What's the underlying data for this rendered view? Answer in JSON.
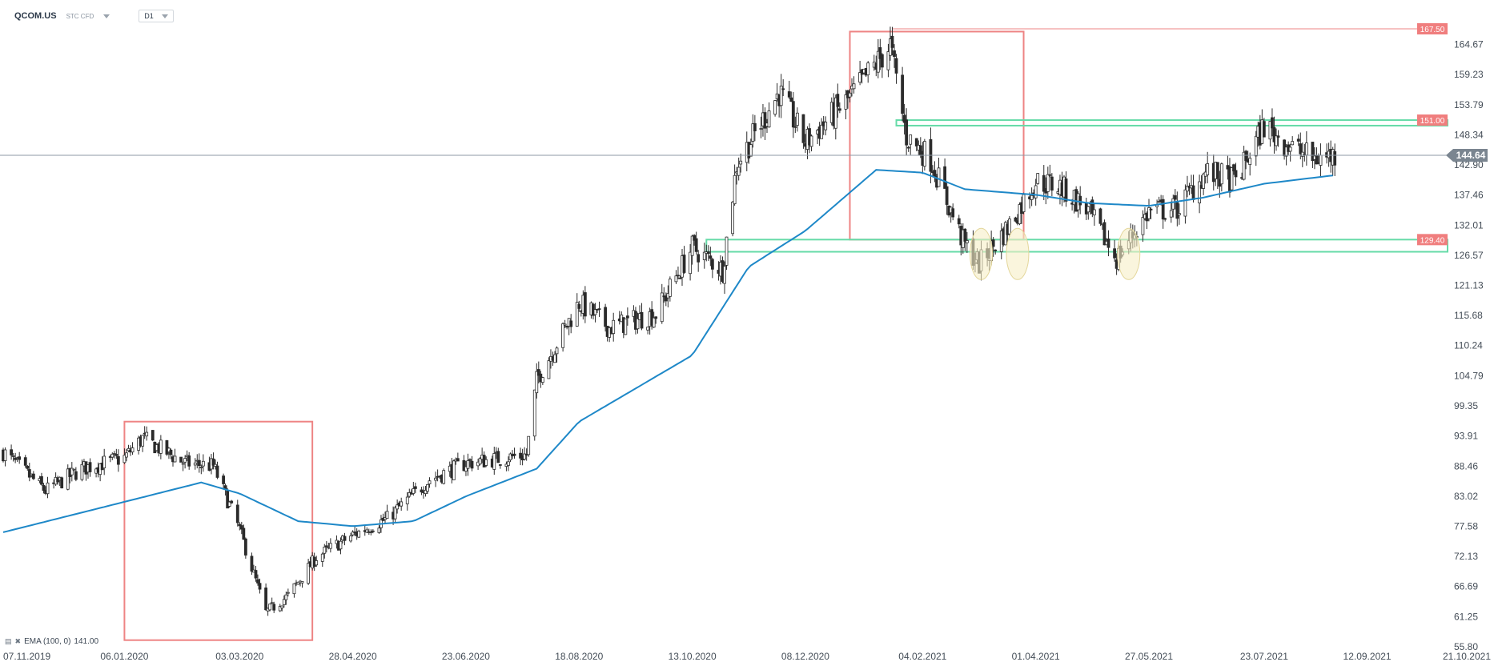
{
  "header": {
    "symbol": "QCOM.US",
    "type_label": "STC CFD",
    "timeframe": "D1"
  },
  "legend": {
    "text": "EMA (100, 0)",
    "value": "141.00",
    "icons": [
      "bars-icon",
      "close-icon"
    ]
  },
  "colors": {
    "candle_bull": "#ffffff",
    "candle_bear": "#2b2b2b",
    "ema": "#1e88c8",
    "box": "#ee8484",
    "zone": "#66dba8",
    "highlight_fill": "#f7efc6",
    "highlight_stroke": "#e3d69a",
    "price_badge": "#7a8590",
    "red_badge": "#f07e7e"
  },
  "chart_data": {
    "type": "candlestick",
    "title": "",
    "y_axis": {
      "min": 55.8,
      "max": 167.5,
      "ticks": [
        164.67,
        159.23,
        153.79,
        148.34,
        142.9,
        137.46,
        132.01,
        126.57,
        121.13,
        115.68,
        110.24,
        104.79,
        99.35,
        93.91,
        88.46,
        83.02,
        77.58,
        72.13,
        66.69,
        61.25,
        55.8
      ]
    },
    "x_axis": {
      "start": "07.11.2019",
      "end": "21.10.2021",
      "ticks": [
        "07.11.2019",
        "06.01.2020",
        "03.03.2020",
        "28.04.2020",
        "23.06.2020",
        "18.08.2020",
        "13.10.2020",
        "08.12.2020",
        "04.02.2021",
        "01.04.2021",
        "27.05.2021",
        "23.07.2021",
        "12.09.2021",
        "21.10.2021"
      ]
    },
    "current_price": 144.64,
    "labeled_levels": [
      167.5,
      151.0,
      129.4
    ],
    "series": [
      {
        "name": "EMA (100, 0)",
        "type": "line",
        "points": [
          [
            "07.11.2019",
            76.5
          ],
          [
            "06.01.2020",
            82.0
          ],
          [
            "13.02.2020",
            85.5
          ],
          [
            "03.03.2020",
            83.5
          ],
          [
            "01.04.2020",
            78.5
          ],
          [
            "28.04.2020",
            77.6
          ],
          [
            "28.05.2020",
            78.5
          ],
          [
            "23.06.2020",
            83.0
          ],
          [
            "28.07.2020",
            88.0
          ],
          [
            "18.08.2020",
            96.5
          ],
          [
            "13.10.2020",
            108.5
          ],
          [
            "10.11.2020",
            124.5
          ],
          [
            "08.12.2020",
            131.0
          ],
          [
            "12.01.2021",
            142.0
          ],
          [
            "04.02.2021",
            141.5
          ],
          [
            "25.02.2021",
            138.5
          ],
          [
            "01.04.2021",
            137.5
          ],
          [
            "27.04.2021",
            136.0
          ],
          [
            "27.05.2021",
            135.5
          ],
          [
            "23.06.2021",
            137.0
          ],
          [
            "23.07.2021",
            139.5
          ],
          [
            "26.08.2021",
            141.0
          ]
        ]
      },
      {
        "name": "QCOM.US",
        "type": "candlestick_trend",
        "points": [
          [
            "07.11.2019",
            91.0
          ],
          [
            "28.11.2019",
            84.0
          ],
          [
            "16.12.2019",
            88.0
          ],
          [
            "06.01.2020",
            90.0
          ],
          [
            "15.01.2020",
            93.5
          ],
          [
            "05.02.2020",
            89.0
          ],
          [
            "19.02.2020",
            88.5
          ],
          [
            "03.03.2020",
            77.0
          ],
          [
            "16.03.2020",
            62.0
          ],
          [
            "27.03.2020",
            65.0
          ],
          [
            "10.04.2020",
            72.0
          ],
          [
            "28.04.2020",
            76.0
          ],
          [
            "15.05.2020",
            79.0
          ],
          [
            "05.06.2020",
            86.0
          ],
          [
            "23.06.2020",
            89.0
          ],
          [
            "23.07.2020",
            90.5
          ],
          [
            "28.07.2020",
            104.0
          ],
          [
            "18.08.2020",
            118.0
          ],
          [
            "02.09.2020",
            113.5
          ],
          [
            "25.09.2020",
            116.0
          ],
          [
            "13.10.2020",
            128.0
          ],
          [
            "28.10.2020",
            124.0
          ],
          [
            "04.11.2020",
            143.0
          ],
          [
            "25.11.2020",
            156.0
          ],
          [
            "08.12.2020",
            147.0
          ],
          [
            "30.12.2020",
            155.0
          ],
          [
            "19.01.2021",
            164.5
          ],
          [
            "27.01.2021",
            148.0
          ],
          [
            "08.02.2021",
            144.0
          ],
          [
            "24.02.2021",
            129.0
          ],
          [
            "04.03.2021",
            125.0
          ],
          [
            "18.03.2021",
            131.5
          ],
          [
            "01.04.2021",
            140.0
          ],
          [
            "13.04.2021",
            139.0
          ],
          [
            "26.04.2021",
            135.0
          ],
          [
            "11.05.2021",
            126.0
          ],
          [
            "27.05.2021",
            134.5
          ],
          [
            "10.06.2021",
            135.0
          ],
          [
            "24.06.2021",
            141.5
          ],
          [
            "09.07.2021",
            140.0
          ],
          [
            "23.07.2021",
            150.0
          ],
          [
            "04.08.2021",
            146.5
          ],
          [
            "16.08.2021",
            144.0
          ],
          [
            "27.08.2021",
            144.64
          ]
        ]
      }
    ],
    "annotations": [
      {
        "type": "box",
        "from": "06.01.2020",
        "to": "08.04.2020",
        "top": 96.5,
        "bottom": 57.0
      },
      {
        "type": "box",
        "from": "30.12.2020",
        "to": "26.03.2021",
        "top": 167.0,
        "bottom": 129.4
      },
      {
        "type": "zone",
        "from": "20.10.2020",
        "to": "21.10.2021",
        "top": 129.4,
        "bottom": 127.2
      },
      {
        "type": "zone",
        "from": "22.01.2021",
        "to": "21.10.2021",
        "top": 151.0,
        "bottom": 150.0
      },
      {
        "type": "line",
        "from": "20.01.2021",
        "to": "21.10.2021",
        "value": 167.5
      },
      {
        "type": "ellipse",
        "date": "05.03.2021",
        "value": 126.8
      },
      {
        "type": "ellipse",
        "date": "23.03.2021",
        "value": 126.8
      },
      {
        "type": "ellipse",
        "date": "17.05.2021",
        "value": 126.8
      }
    ]
  }
}
